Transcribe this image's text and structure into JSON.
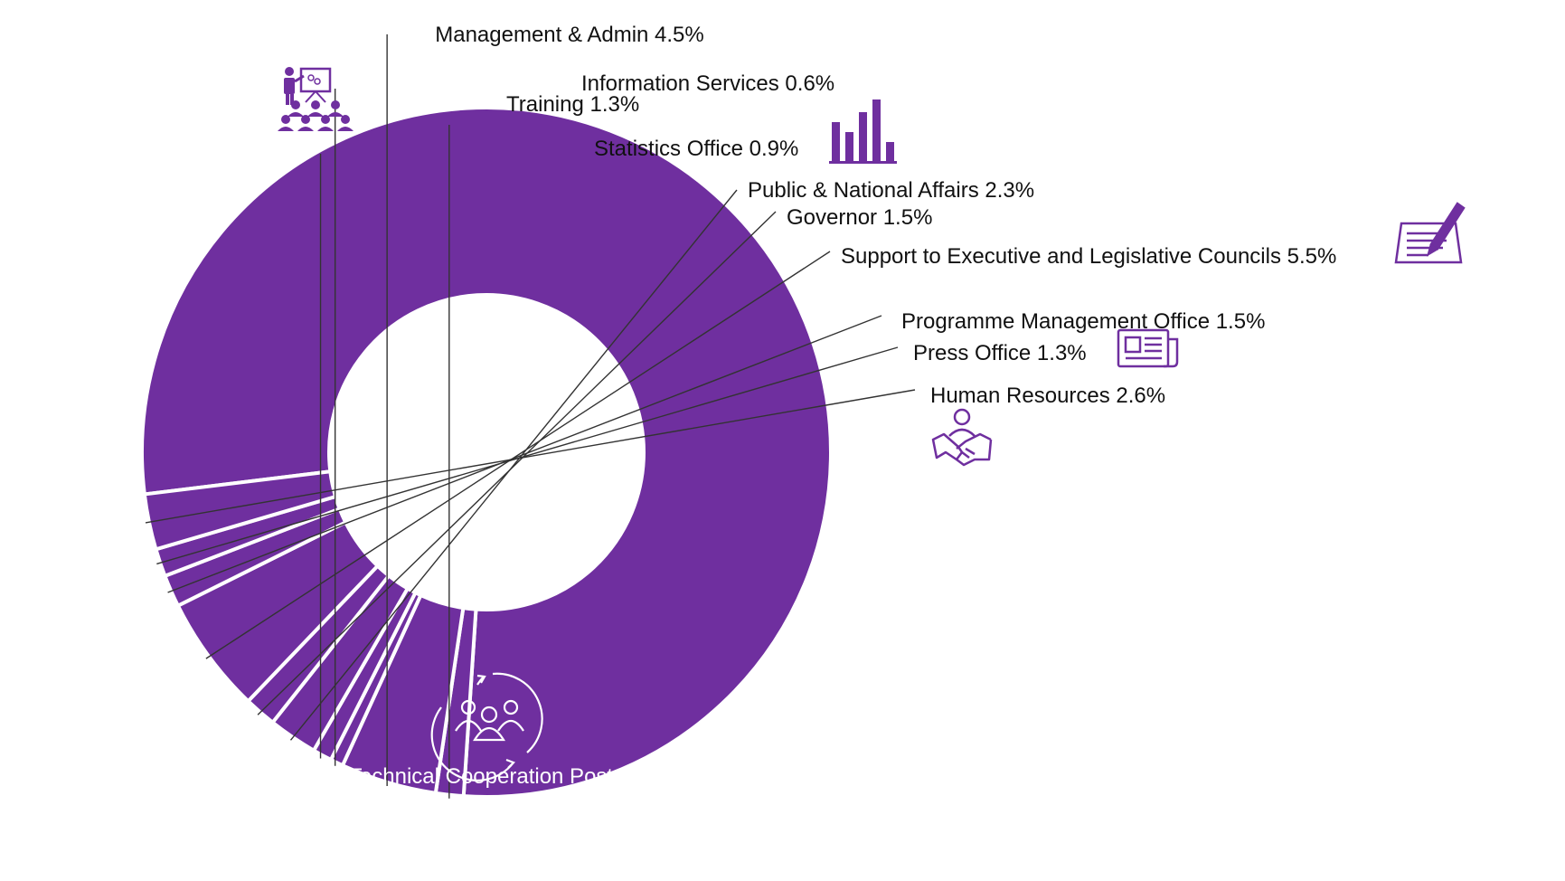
{
  "chart_data": {
    "type": "pie",
    "variant": "donut",
    "title": "",
    "slices": [
      {
        "label": "Technical Cooperation Posts",
        "value": 78,
        "display": "78%",
        "icon": "team-cycle-icon"
      },
      {
        "label": "Training",
        "value": 1.3,
        "display": "1.3%",
        "icon": "training-presentation-icon"
      },
      {
        "label": "Management & Admin",
        "value": 4.5,
        "display": "4.5%"
      },
      {
        "label": "Information Services",
        "value": 0.6,
        "display": "0.6%"
      },
      {
        "label": "Statistics Office",
        "value": 0.9,
        "display": "0.9%",
        "icon": "bar-chart-icon"
      },
      {
        "label": "Public & National Affairs",
        "value": 2.3,
        "display": "2.3%"
      },
      {
        "label": "Governor",
        "value": 1.5,
        "display": "1.5%"
      },
      {
        "label": "Support to Executive and Legislative Councils",
        "value": 5.5,
        "display": "5.5%",
        "icon": "document-pen-icon"
      },
      {
        "label": "Programme Management Office",
        "value": 1.5,
        "display": "1.5%"
      },
      {
        "label": "Press Office",
        "value": 1.3,
        "display": "1.3%",
        "icon": "newspaper-icon"
      },
      {
        "label": "Human Resources",
        "value": 2.6,
        "display": "2.6%",
        "icon": "handshake-icon"
      }
    ],
    "colors": {
      "slice": "#6f2f9f",
      "separator": "#ffffff",
      "label": "#111111",
      "leader": "#333333"
    },
    "legend": "none",
    "labels": "outside with leader lines"
  }
}
